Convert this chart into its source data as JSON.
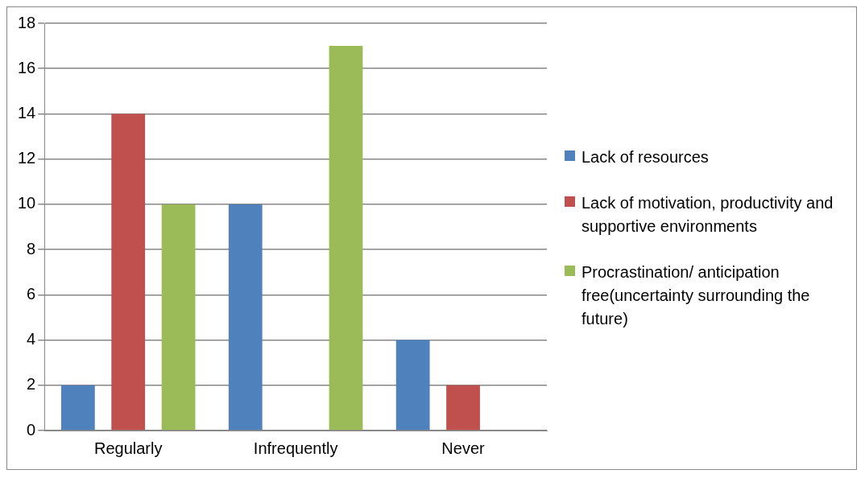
{
  "chart_data": {
    "type": "bar",
    "categories": [
      "Regularly",
      "Infrequently",
      "Never"
    ],
    "series": [
      {
        "name": "Lack of resources",
        "color": "#4f81bd",
        "values": [
          2,
          10,
          4
        ]
      },
      {
        "name": "Lack of motivation, productivity and supportive environments",
        "color": "#c0504d",
        "values": [
          14,
          0,
          2
        ]
      },
      {
        "name": "Procrastination/ anticipation free(uncertainty surrounding the future)",
        "color": "#9bbb59",
        "values": [
          10,
          17,
          0
        ]
      }
    ],
    "ylim": [
      0,
      18
    ],
    "yticks": [
      0,
      2,
      4,
      6,
      8,
      10,
      12,
      14,
      16,
      18
    ],
    "grid": "y",
    "legend": "right"
  }
}
